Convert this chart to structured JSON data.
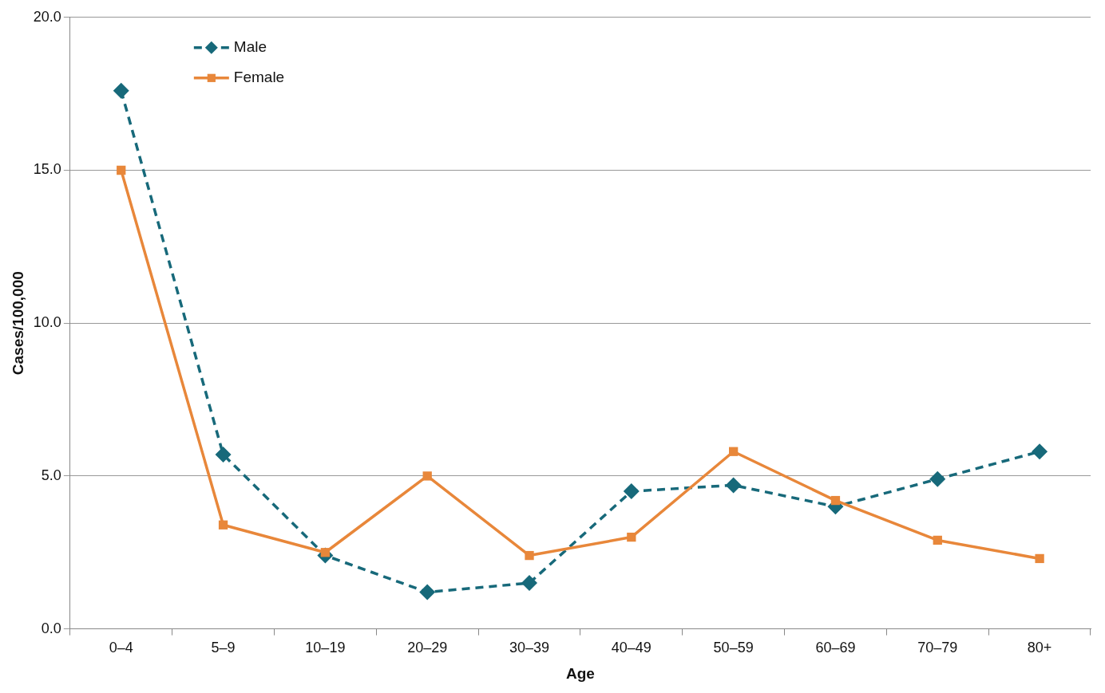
{
  "chart_data": {
    "type": "line",
    "xlabel": "Age",
    "ylabel": "Cases/100,000",
    "categories": [
      "0–4",
      "5–9",
      "10–19",
      "20–29",
      "30–39",
      "40–49",
      "50–59",
      "60–69",
      "70–79",
      "80+"
    ],
    "series": [
      {
        "name": "Male",
        "color": "#17697a",
        "marker": "diamond",
        "line_style": "dashed",
        "values": [
          17.6,
          5.7,
          2.4,
          1.2,
          1.5,
          4.5,
          4.7,
          4.0,
          4.9,
          5.8
        ]
      },
      {
        "name": "Female",
        "color": "#e8873a",
        "marker": "square",
        "line_style": "solid",
        "values": [
          15.0,
          3.4,
          2.5,
          5.0,
          2.4,
          3.0,
          5.8,
          4.2,
          2.9,
          2.3
        ]
      }
    ],
    "ylim": [
      0,
      20
    ],
    "yticks": [
      {
        "value": 0,
        "label": "0.0"
      },
      {
        "value": 5,
        "label": "5.0"
      },
      {
        "value": 10,
        "label": "10.0"
      },
      {
        "value": 15,
        "label": "15.0"
      },
      {
        "value": 20,
        "label": "20.0"
      }
    ],
    "grid": "y",
    "legend": "top left"
  }
}
